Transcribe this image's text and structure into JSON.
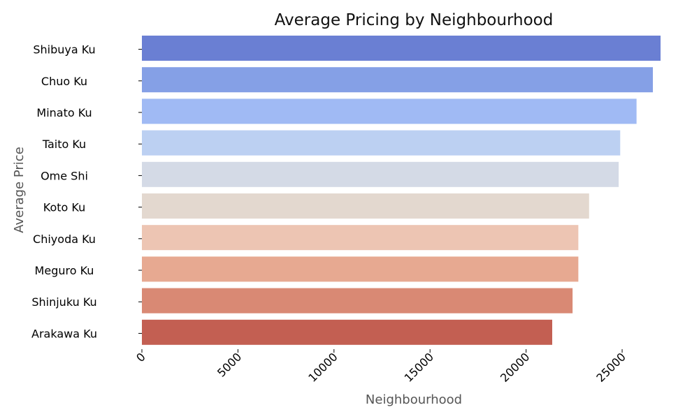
{
  "chart_data": {
    "type": "bar",
    "orientation": "horizontal",
    "title": "Average Pricing by Neighbourhood",
    "xlabel": "Neighbourhood",
    "ylabel": "Average Price",
    "categories": [
      "Shibuya Ku",
      "Chuo Ku",
      "Minato Ku",
      "Taito Ku",
      "Ome Shi",
      "Koto Ku",
      "Chiyoda Ku",
      "Meguro Ku",
      "Shinjuku Ku",
      "Arakawa Ku"
    ],
    "values": [
      27000,
      26600,
      25750,
      24900,
      24820,
      23280,
      22720,
      22720,
      22420,
      21360
    ],
    "colors": [
      "#6a7fd3",
      "#85a0e6",
      "#a0baf4",
      "#bcd0f2",
      "#d4dae6",
      "#e3d8cf",
      "#edc5b3",
      "#e7a991",
      "#d98974",
      "#c35f52"
    ],
    "xlim": [
      0,
      27000
    ],
    "xticks": [
      0,
      5000,
      10000,
      15000,
      20000,
      25000
    ],
    "grid": false,
    "legend": "none"
  }
}
